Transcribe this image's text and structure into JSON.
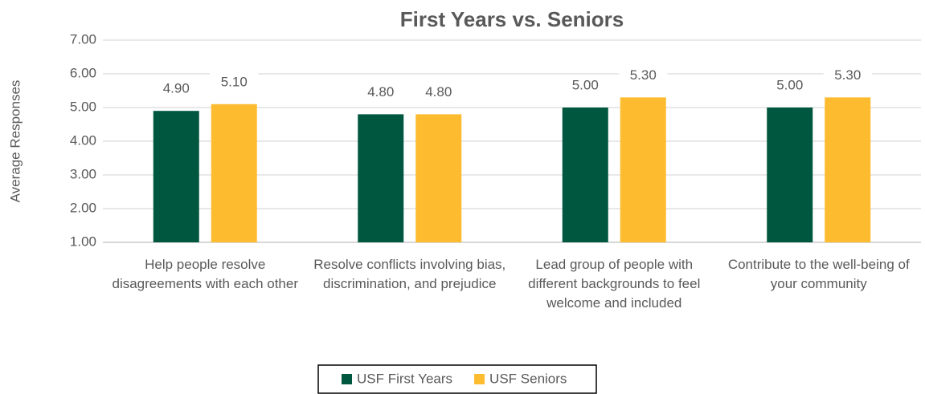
{
  "chart_data": {
    "type": "bar",
    "title": "First Years vs. Seniors",
    "y_label": "Average Responses",
    "categories": [
      "Help people resolve disagreements with each other",
      "Resolve conflicts involving bias, discrimination, and prejudice",
      "Lead group of people with different backgrounds to feel welcome and included",
      "Contribute to the well-being of your community"
    ],
    "series": [
      {
        "name": "USF First Years",
        "color": "#00573f",
        "values": [
          4.9,
          4.8,
          5.0,
          5.0
        ],
        "value_labels": [
          "4.90",
          "4.80",
          "5.00",
          "5.00"
        ]
      },
      {
        "name": "USF Seniors",
        "color": "#fdbb30",
        "values": [
          5.1,
          4.8,
          5.3,
          5.3
        ],
        "value_labels": [
          "5.10",
          "4.80",
          "5.30",
          "5.30"
        ]
      }
    ],
    "ylim": [
      1,
      7
    ],
    "yticks": [
      {
        "value": 1,
        "label": "1.00"
      },
      {
        "value": 2,
        "label": "2.00"
      },
      {
        "value": 3,
        "label": "3.00"
      },
      {
        "value": 4,
        "label": "4.00"
      },
      {
        "value": 5,
        "label": "5.00"
      },
      {
        "value": 6,
        "label": "6.00"
      },
      {
        "value": 7,
        "label": "7.00"
      }
    ],
    "grid": true,
    "legend": "bottom"
  }
}
